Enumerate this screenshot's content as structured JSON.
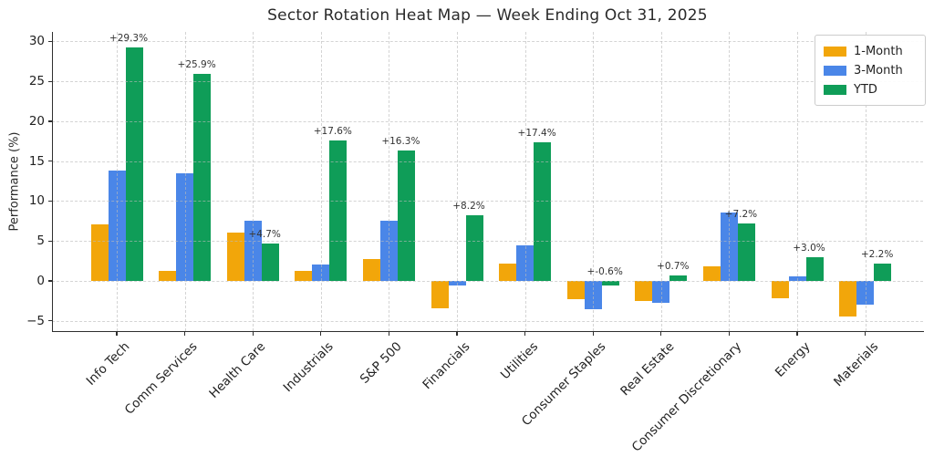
{
  "chart_data": {
    "type": "bar",
    "title": "Sector Rotation Heat Map — Week Ending Oct 31, 2025",
    "xlabel": "",
    "ylabel": "Performance (%)",
    "categories": [
      "Info Tech",
      "Comm Services",
      "Health Care",
      "Industrials",
      "S&P 500",
      "Financials",
      "Utilities",
      "Consumer Staples",
      "Real Estate",
      "Consumer Discretionary",
      "Energy",
      "Materials"
    ],
    "series": [
      {
        "name": "1-Month",
        "color": "#F2A60A",
        "values": [
          7.1,
          1.3,
          6.0,
          1.2,
          2.7,
          -3.4,
          2.2,
          -2.3,
          -2.5,
          1.8,
          -2.2,
          -4.5
        ]
      },
      {
        "name": "3-Month",
        "color": "#4A86E8",
        "values": [
          13.8,
          13.5,
          7.5,
          2.0,
          7.5,
          -0.6,
          4.5,
          -3.5,
          -2.7,
          8.6,
          0.6,
          -3.0
        ]
      },
      {
        "name": "YTD",
        "color": "#0F9D58",
        "values": [
          29.3,
          25.9,
          4.7,
          17.6,
          16.3,
          8.2,
          17.4,
          -0.6,
          0.7,
          7.2,
          3.0,
          2.2
        ]
      }
    ],
    "bar_labels": {
      "labeled_series": "YTD",
      "texts": [
        "+29.3%",
        "+25.9%",
        "+4.7%",
        "+17.6%",
        "+16.3%",
        "+8.2%",
        "+17.4%",
        "+-0.6%",
        "+0.7%",
        "+7.2%",
        "+3.0%",
        "+2.2%"
      ]
    },
    "yticks": {
      "values": [
        30,
        25,
        20,
        15,
        10,
        5,
        0,
        -5
      ],
      "labels": [
        "30",
        "25",
        "20",
        "15",
        "10",
        "5",
        "0",
        "−5"
      ]
    },
    "ylim": [
      -6.3,
      31.2
    ],
    "grid": true,
    "legend_position": "upper-right",
    "legend_entries": [
      "1-Month",
      "3-Month",
      "YTD"
    ]
  }
}
